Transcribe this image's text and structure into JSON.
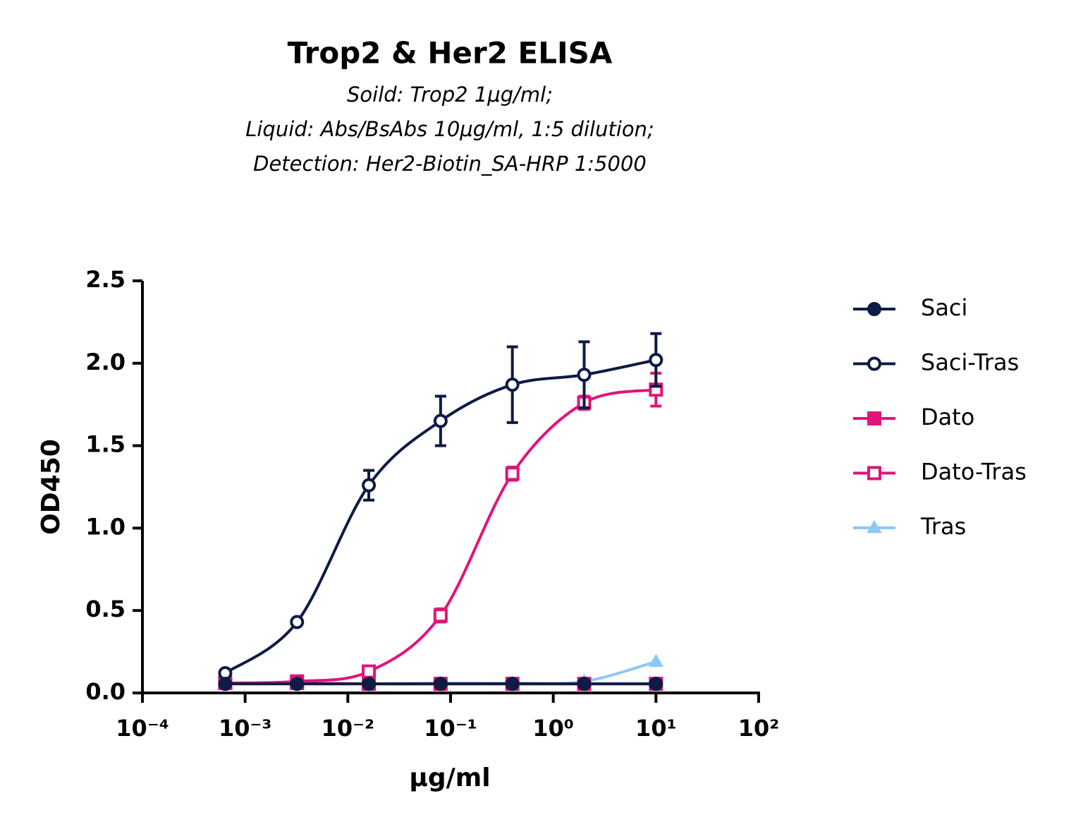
{
  "chart_data": {
    "type": "line",
    "title": "Trop2 & Her2 ELISA",
    "subtitle": [
      "Soild: Trop2 1μg/ml;",
      "Liquid: Abs/BsAbs 10μg/ml, 1:5 dilution;",
      "Detection: Her2-Biotin_SA-HRP 1:5000"
    ],
    "xlabel": "μg/ml",
    "ylabel": "OD450",
    "xscale": "log",
    "x": [
      0.00064,
      0.0032,
      0.016,
      0.08,
      0.4,
      2,
      10
    ],
    "series": [
      {
        "name": "Saci",
        "color": "#0d1b45",
        "marker": "filled-circle",
        "values": [
          0.055,
          0.055,
          0.055,
          0.055,
          0.055,
          0.055,
          0.055
        ],
        "errors": [
          null,
          null,
          null,
          null,
          null,
          null,
          null
        ]
      },
      {
        "name": "Saci-Tras",
        "color": "#0d1b45",
        "marker": "open-circle",
        "values": [
          0.12,
          0.43,
          1.26,
          1.65,
          1.87,
          1.93,
          2.02
        ],
        "errors": [
          null,
          null,
          0.09,
          0.15,
          0.23,
          0.2,
          0.16
        ]
      },
      {
        "name": "Dato",
        "color": "#e0147a",
        "marker": "filled-square",
        "values": [
          0.06,
          0.06,
          0.055,
          0.055,
          0.055,
          0.055,
          0.055
        ],
        "errors": [
          null,
          null,
          null,
          null,
          null,
          null,
          null
        ]
      },
      {
        "name": "Dato-Tras",
        "color": "#e0147a",
        "marker": "open-square",
        "values": [
          0.06,
          0.07,
          0.13,
          0.47,
          1.33,
          1.76,
          1.84
        ],
        "errors": [
          null,
          null,
          null,
          0.04,
          0.04,
          0.04,
          0.1
        ]
      },
      {
        "name": "Tras",
        "color": "#8ec9f5",
        "marker": "triangle",
        "values": [
          0.055,
          0.055,
          0.055,
          0.06,
          0.06,
          0.07,
          0.19
        ],
        "errors": [
          null,
          null,
          null,
          null,
          null,
          null,
          null
        ]
      }
    ],
    "xlim": [
      0.0001,
      100
    ],
    "xticks": [
      {
        "value": 0.0001,
        "label": "10⁻⁴"
      },
      {
        "value": 0.001,
        "label": "10⁻³"
      },
      {
        "value": 0.01,
        "label": "10⁻²"
      },
      {
        "value": 0.1,
        "label": "10⁻¹"
      },
      {
        "value": 1,
        "label": "10⁰"
      },
      {
        "value": 10,
        "label": "10¹"
      },
      {
        "value": 100,
        "label": "10²"
      }
    ],
    "ylim": [
      0,
      2.5
    ],
    "yticks": [
      {
        "value": 0,
        "label": "0.0"
      },
      {
        "value": 0.5,
        "label": "0.5"
      },
      {
        "value": 1,
        "label": "1.0"
      },
      {
        "value": 1.5,
        "label": "1.5"
      },
      {
        "value": 2,
        "label": "2.0"
      },
      {
        "value": 2.5,
        "label": "2.5"
      }
    ],
    "grid": false,
    "legend": "right"
  }
}
